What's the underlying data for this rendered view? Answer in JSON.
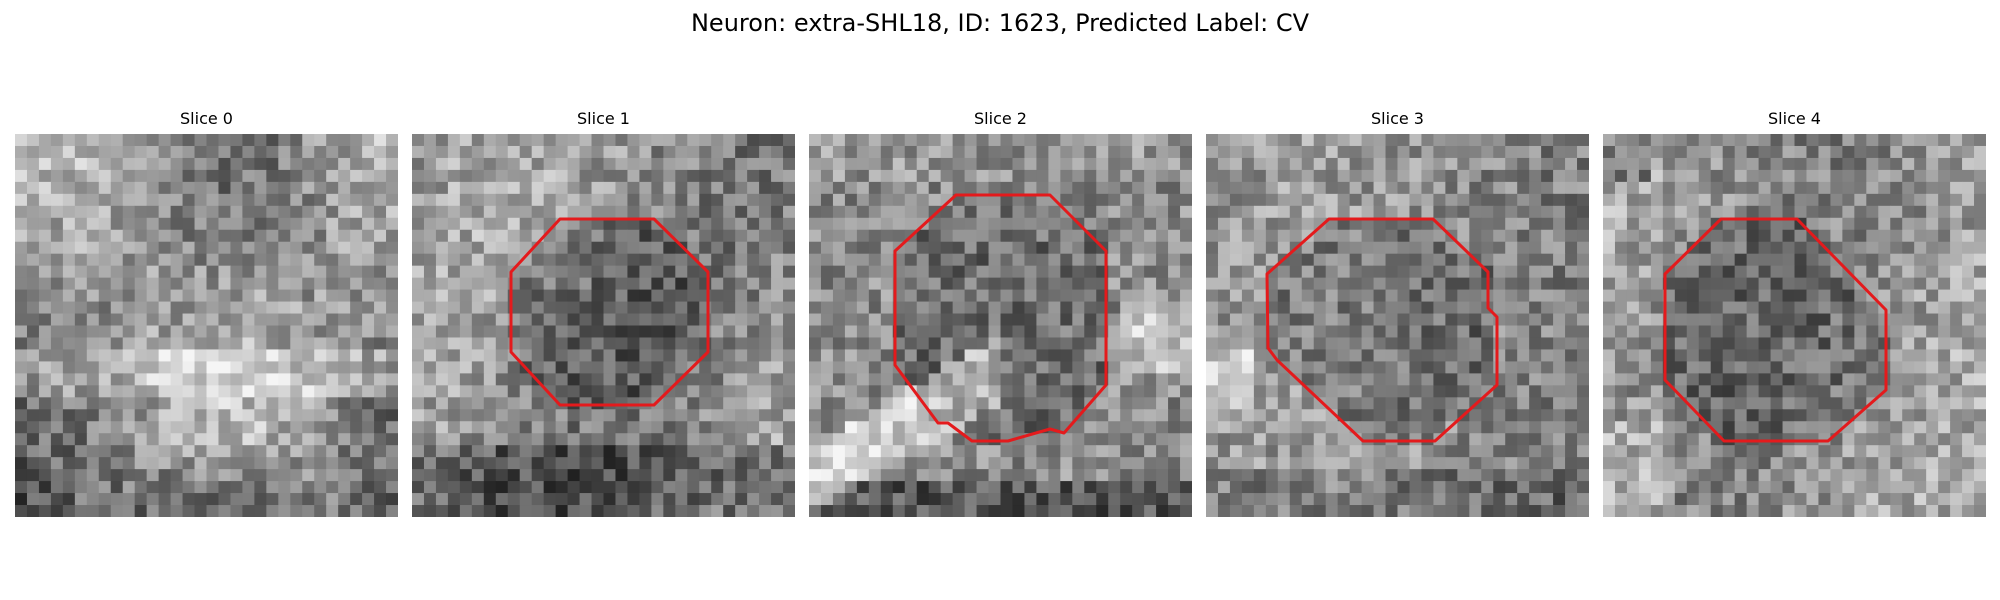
{
  "figure": {
    "title": "Neuron: extra-SHL18, ID: 1623, Predicted Label: CV"
  },
  "contour_color": "#e41a1c",
  "panels": [
    {
      "title": "Slice 0",
      "has_contour": false
    },
    {
      "title": "Slice 1",
      "has_contour": true
    },
    {
      "title": "Slice 2",
      "has_contour": true
    },
    {
      "title": "Slice 3",
      "has_contour": true
    },
    {
      "title": "Slice 4",
      "has_contour": true
    }
  ]
}
